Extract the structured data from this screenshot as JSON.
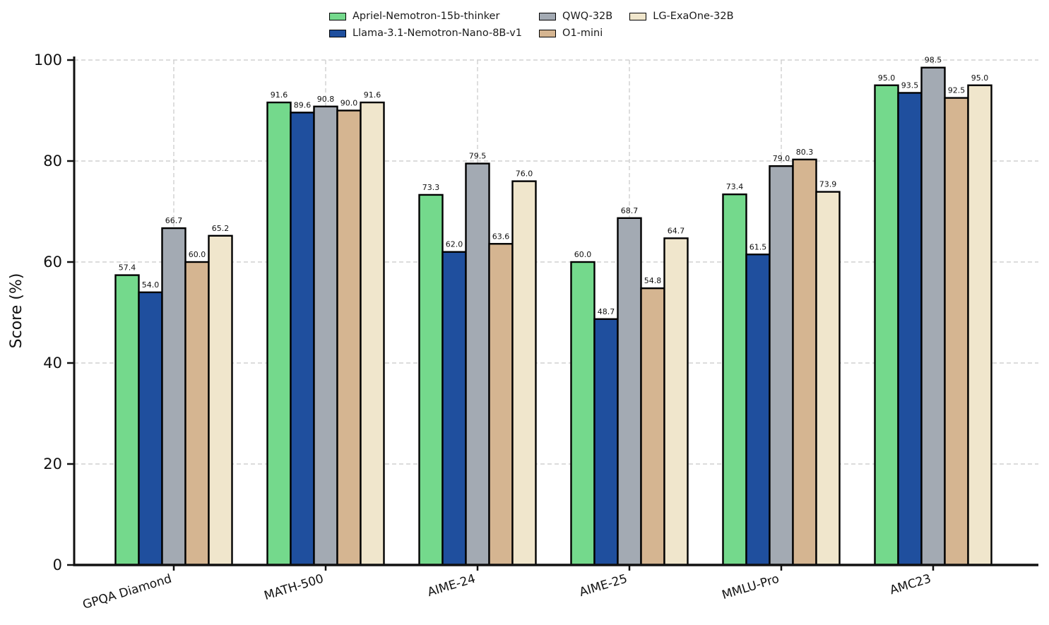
{
  "figure": {
    "background_color": "#ffffff",
    "grid_color": "#d0d0d0",
    "axis_color": "#111111",
    "bar_edge_color": "#000000",
    "value_label_color": "#111111"
  },
  "chart_data": {
    "type": "bar",
    "title": "",
    "xlabel": "",
    "ylabel": "Score (%)",
    "ylim": [
      0,
      100
    ],
    "yticks": [
      0,
      20,
      40,
      60,
      80,
      100
    ],
    "grid": true,
    "grid_style": "dashed",
    "legend_position": "top-center",
    "value_labels": true,
    "value_label_decimals": 1,
    "categories": [
      "GPQA Diamond",
      "MATH-500",
      "AIME-24",
      "AIME-25",
      "MMLU-Pro",
      "AMC23"
    ],
    "series": [
      {
        "name": "Apriel-Nemotron-15b-thinker",
        "color": "#74d98c",
        "values": [
          57.4,
          91.6,
          73.3,
          60.0,
          73.4,
          95.0
        ]
      },
      {
        "name": "Llama-3.1-Nemotron-Nano-8B-v1",
        "color": "#1f4f9e",
        "values": [
          54.0,
          89.6,
          62.0,
          48.7,
          61.5,
          93.5
        ]
      },
      {
        "name": "QWQ-32B",
        "color": "#a3aab3",
        "values": [
          66.7,
          90.8,
          79.5,
          68.7,
          79.0,
          98.5
        ]
      },
      {
        "name": "O1-mini",
        "color": "#d5b591",
        "values": [
          60.0,
          90.0,
          63.6,
          54.8,
          80.3,
          92.5
        ]
      },
      {
        "name": "LG-ExaOne-32B",
        "color": "#f0e6cc",
        "values": [
          65.2,
          91.6,
          76.0,
          64.7,
          73.9,
          95.0
        ]
      }
    ]
  }
}
